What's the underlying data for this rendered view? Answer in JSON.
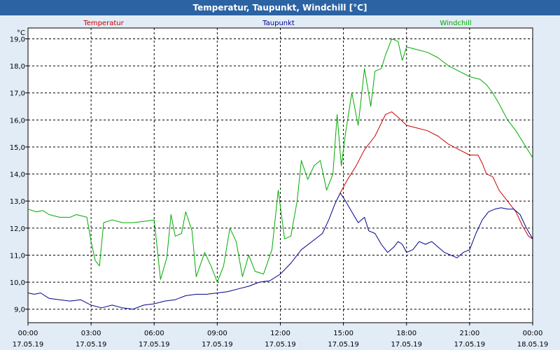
{
  "window": {
    "title": "Temperatur, Taupunkt, Windchill [°C]"
  },
  "chart_data": {
    "type": "line",
    "title": "Temperatur, Taupunkt, Windchill [°C]",
    "ylabel": "°C",
    "xlabel": "",
    "ylim": [
      8.5,
      19.4
    ],
    "xlim": [
      0,
      24
    ],
    "grid": true,
    "legend_placement": "top",
    "y_ticks": [
      9.0,
      10.0,
      11.0,
      12.0,
      13.0,
      14.0,
      15.0,
      16.0,
      17.0,
      18.0,
      19.0
    ],
    "y_tick_labels": [
      "9,0",
      "10,0",
      "11,0",
      "12,0",
      "13,0",
      "14,0",
      "15,0",
      "16,0",
      "17,0",
      "18,0",
      "19,0"
    ],
    "x_ticks": [
      0,
      3,
      6,
      9,
      12,
      15,
      18,
      21,
      24
    ],
    "x_tick_labels": [
      [
        "00:00",
        "17.05.19"
      ],
      [
        "03:00",
        "17.05.19"
      ],
      [
        "06:00",
        "17.05.19"
      ],
      [
        "09:00",
        "17.05.19"
      ],
      [
        "12:00",
        "17.05.19"
      ],
      [
        "15:00",
        "17.05.19"
      ],
      [
        "18:00",
        "17.05.19"
      ],
      [
        "21:00",
        "17.05.19"
      ],
      [
        "00:00",
        "18.05.19"
      ]
    ],
    "series": [
      {
        "name": "Temperatur",
        "color": "#cc0000",
        "points": [
          [
            14.85,
            13.3
          ],
          [
            15.2,
            13.8
          ],
          [
            15.6,
            14.3
          ],
          [
            16.0,
            14.9
          ],
          [
            16.5,
            15.4
          ],
          [
            17.0,
            16.2
          ],
          [
            17.3,
            16.3
          ],
          [
            17.6,
            16.1
          ],
          [
            18.0,
            15.8
          ],
          [
            18.5,
            15.7
          ],
          [
            19.0,
            15.6
          ],
          [
            19.5,
            15.4
          ],
          [
            20.0,
            15.1
          ],
          [
            20.5,
            14.9
          ],
          [
            21.0,
            14.7
          ],
          [
            21.4,
            14.7
          ],
          [
            21.6,
            14.4
          ],
          [
            21.8,
            14.0
          ],
          [
            22.1,
            13.9
          ],
          [
            22.4,
            13.4
          ],
          [
            22.8,
            13.0
          ],
          [
            23.2,
            12.6
          ],
          [
            23.5,
            12.1
          ],
          [
            23.8,
            11.7
          ],
          [
            24.0,
            11.6
          ]
        ]
      },
      {
        "name": "Taupunkt",
        "color": "#00008b",
        "points": [
          [
            0,
            9.6
          ],
          [
            0.3,
            9.55
          ],
          [
            0.6,
            9.6
          ],
          [
            1.0,
            9.4
          ],
          [
            1.5,
            9.35
          ],
          [
            2.0,
            9.3
          ],
          [
            2.5,
            9.35
          ],
          [
            3.0,
            9.15
          ],
          [
            3.5,
            9.05
          ],
          [
            4.0,
            9.15
          ],
          [
            4.5,
            9.05
          ],
          [
            5.0,
            9.0
          ],
          [
            5.5,
            9.15
          ],
          [
            6.0,
            9.2
          ],
          [
            6.5,
            9.3
          ],
          [
            7.0,
            9.35
          ],
          [
            7.5,
            9.5
          ],
          [
            8.0,
            9.55
          ],
          [
            8.5,
            9.55
          ],
          [
            9.0,
            9.6
          ],
          [
            9.5,
            9.65
          ],
          [
            10.0,
            9.75
          ],
          [
            10.5,
            9.85
          ],
          [
            11.0,
            10.0
          ],
          [
            11.5,
            10.05
          ],
          [
            12.0,
            10.3
          ],
          [
            12.5,
            10.7
          ],
          [
            13.0,
            11.2
          ],
          [
            13.5,
            11.5
          ],
          [
            14.0,
            11.8
          ],
          [
            14.3,
            12.3
          ],
          [
            14.6,
            12.9
          ],
          [
            14.85,
            13.3
          ],
          [
            15.1,
            13.0
          ],
          [
            15.4,
            12.6
          ],
          [
            15.7,
            12.2
          ],
          [
            16.0,
            12.4
          ],
          [
            16.2,
            11.9
          ],
          [
            16.5,
            11.8
          ],
          [
            16.8,
            11.4
          ],
          [
            17.1,
            11.1
          ],
          [
            17.4,
            11.3
          ],
          [
            17.6,
            11.5
          ],
          [
            17.8,
            11.4
          ],
          [
            18.0,
            11.1
          ],
          [
            18.3,
            11.2
          ],
          [
            18.6,
            11.5
          ],
          [
            18.9,
            11.4
          ],
          [
            19.2,
            11.5
          ],
          [
            19.5,
            11.3
          ],
          [
            19.8,
            11.1
          ],
          [
            20.1,
            11.0
          ],
          [
            20.4,
            10.9
          ],
          [
            20.7,
            11.1
          ],
          [
            21.0,
            11.2
          ],
          [
            21.3,
            11.8
          ],
          [
            21.6,
            12.3
          ],
          [
            21.9,
            12.6
          ],
          [
            22.2,
            12.7
          ],
          [
            22.5,
            12.75
          ],
          [
            22.8,
            12.7
          ],
          [
            23.1,
            12.7
          ],
          [
            23.4,
            12.5
          ],
          [
            23.7,
            12.0
          ],
          [
            24.0,
            11.6
          ]
        ]
      },
      {
        "name": "Windchill",
        "color": "#00aa00",
        "points": [
          [
            0,
            12.7
          ],
          [
            0.4,
            12.6
          ],
          [
            0.7,
            12.65
          ],
          [
            1.0,
            12.5
          ],
          [
            1.5,
            12.4
          ],
          [
            2.0,
            12.4
          ],
          [
            2.3,
            12.5
          ],
          [
            2.8,
            12.4
          ],
          [
            3.0,
            11.5
          ],
          [
            3.2,
            10.8
          ],
          [
            3.4,
            10.6
          ],
          [
            3.6,
            12.2
          ],
          [
            4.0,
            12.3
          ],
          [
            4.5,
            12.2
          ],
          [
            5.0,
            12.2
          ],
          [
            5.5,
            12.25
          ],
          [
            6.0,
            12.3
          ],
          [
            6.3,
            10.1
          ],
          [
            6.6,
            10.9
          ],
          [
            6.8,
            12.5
          ],
          [
            7.0,
            11.7
          ],
          [
            7.3,
            11.8
          ],
          [
            7.5,
            12.6
          ],
          [
            7.8,
            11.9
          ],
          [
            8.0,
            10.2
          ],
          [
            8.4,
            11.1
          ],
          [
            8.7,
            10.6
          ],
          [
            9.0,
            10.0
          ],
          [
            9.3,
            10.6
          ],
          [
            9.6,
            12.0
          ],
          [
            9.9,
            11.5
          ],
          [
            10.2,
            10.2
          ],
          [
            10.5,
            11.0
          ],
          [
            10.8,
            10.4
          ],
          [
            11.2,
            10.3
          ],
          [
            11.6,
            11.2
          ],
          [
            11.9,
            13.4
          ],
          [
            12.2,
            11.6
          ],
          [
            12.5,
            11.7
          ],
          [
            12.8,
            13.0
          ],
          [
            13.0,
            14.5
          ],
          [
            13.3,
            13.8
          ],
          [
            13.6,
            14.3
          ],
          [
            13.9,
            14.5
          ],
          [
            14.2,
            13.4
          ],
          [
            14.5,
            14.0
          ],
          [
            14.7,
            16.2
          ],
          [
            14.9,
            14.3
          ],
          [
            15.1,
            15.5
          ],
          [
            15.4,
            17.0
          ],
          [
            15.7,
            15.8
          ],
          [
            16.0,
            17.9
          ],
          [
            16.3,
            16.5
          ],
          [
            16.5,
            17.8
          ],
          [
            16.8,
            17.9
          ],
          [
            17.0,
            18.4
          ],
          [
            17.3,
            19.0
          ],
          [
            17.6,
            18.9
          ],
          [
            17.8,
            18.2
          ],
          [
            18.0,
            18.7
          ],
          [
            18.5,
            18.6
          ],
          [
            19.0,
            18.5
          ],
          [
            19.5,
            18.3
          ],
          [
            20.0,
            18.0
          ],
          [
            20.5,
            17.8
          ],
          [
            21.0,
            17.6
          ],
          [
            21.5,
            17.5
          ],
          [
            21.8,
            17.3
          ],
          [
            22.1,
            17.0
          ],
          [
            22.4,
            16.6
          ],
          [
            22.8,
            16.0
          ],
          [
            23.2,
            15.6
          ],
          [
            23.6,
            15.1
          ],
          [
            24.0,
            14.6
          ]
        ]
      }
    ]
  }
}
